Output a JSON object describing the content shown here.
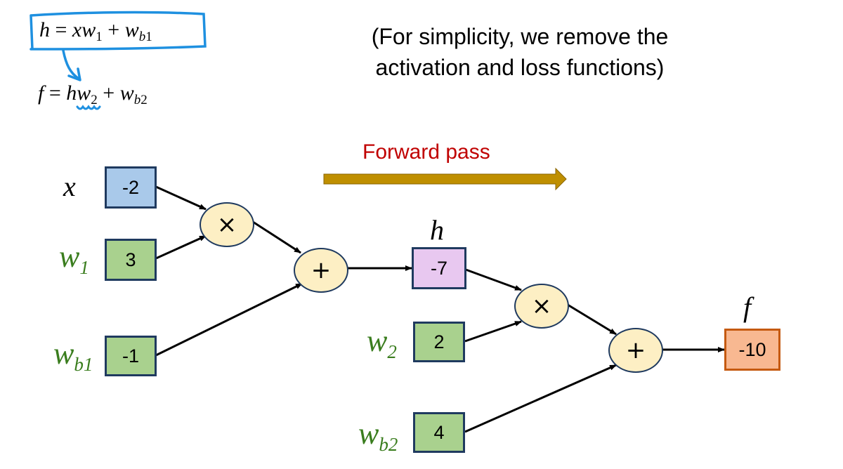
{
  "equations": {
    "h_lhs": "h",
    "h_rhs_x": "x",
    "h_rhs_w": "w",
    "h_rhs_w_sub": "1",
    "h_rhs_plus": "+",
    "h_rhs_wb": "w",
    "h_rhs_wb_sub_b": "b",
    "h_rhs_wb_sub_n": "1",
    "f_lhs": "f",
    "f_rhs_h": "h",
    "f_rhs_w": "w",
    "f_rhs_w_sub": "2",
    "f_rhs_wb": "w",
    "f_rhs_wb_sub_b": "b",
    "f_rhs_wb_sub_n": "2",
    "equals": "="
  },
  "note": {
    "line1": "(For simplicity, we remove the",
    "line2": "activation and loss functions)"
  },
  "forward": {
    "label": "Forward pass"
  },
  "labels": {
    "x": "x",
    "w1": "w",
    "w1_sub": "1",
    "wb1": "w",
    "wb1_sub": "b1",
    "h": "h",
    "w2": "w",
    "w2_sub": "2",
    "wb2": "w",
    "wb2_sub": "b2",
    "f": "f"
  },
  "nodes": {
    "x": "-2",
    "w1": "3",
    "wb1": "-1",
    "h": "-7",
    "w2": "2",
    "wb2": "4",
    "f": "-10"
  },
  "ops": {
    "mul1": "×",
    "add1": "+",
    "mul2": "×",
    "add2": "+"
  },
  "colors": {
    "annotation": "#1e90e0",
    "arrow_forward": "#bf8f00",
    "label_green": "#3a7d1e",
    "forward_text": "#c00000"
  }
}
